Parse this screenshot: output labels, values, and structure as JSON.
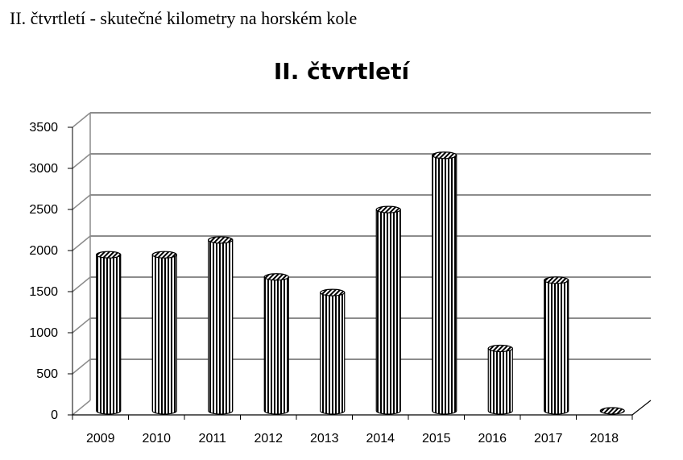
{
  "page": {
    "heading": "II. čtvrtletí - skutečné kilometry na horském kole"
  },
  "chart_data": {
    "type": "bar",
    "title": "II. čtvrtletí",
    "categories": [
      "2009",
      "2010",
      "2011",
      "2012",
      "2013",
      "2014",
      "2015",
      "2016",
      "2017",
      "2018"
    ],
    "values": [
      1900,
      1900,
      2080,
      1630,
      1440,
      2450,
      3110,
      760,
      1590,
      0
    ],
    "ylim": [
      0,
      3500
    ],
    "yticks": [
      0,
      500,
      1000,
      1500,
      2000,
      2500,
      3000,
      3500
    ],
    "grid": true,
    "legend": "none",
    "bar_style": "3d-cylinder-vertical-hatch"
  }
}
